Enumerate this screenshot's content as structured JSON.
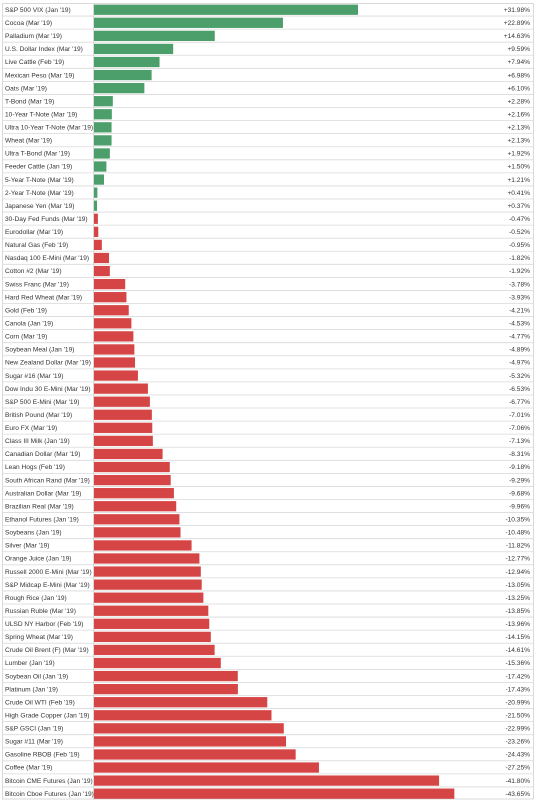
{
  "chart_data": {
    "type": "bar",
    "orientation": "horizontal",
    "title": "",
    "xlabel": "",
    "ylabel": "",
    "xlim": [
      -43.65,
      31.98
    ],
    "grid": true,
    "legend": "none",
    "colors": {
      "positive": "#4c9f6a",
      "negative": "#d64545",
      "row_border": "#d9d9d9",
      "label_text": "#333333"
    },
    "categories": [
      "S&P 500 VIX (Jan '19)",
      "Cocoa (Mar '19)",
      "Palladium (Mar '19)",
      "U.S. Dollar Index (Mar '19)",
      "Live Cattle (Feb '19)",
      "Mexican Peso (Mar '19)",
      "Oats (Mar '19)",
      "T-Bond (Mar '19)",
      "10-Year T-Note (Mar '19)",
      "Ultra 10-Year T-Note (Mar '19)",
      "Wheat (Mar '19)",
      "Ultra T-Bond (Mar '19)",
      "Feeder Cattle (Jan '19)",
      "5-Year T-Note (Mar '19)",
      "2-Year T-Note (Mar '19)",
      "Japanese Yen (Mar '19)",
      "30-Day Fed Funds (Mar '19)",
      "Eurodollar (Mar '19)",
      "Natural Gas (Feb '19)",
      "Nasdaq 100 E-Mini (Mar '19)",
      "Cotton #2 (Mar '19)",
      "Swiss Franc (Mar '19)",
      "Hard Red Wheat (Mar '19)",
      "Gold (Feb '19)",
      "Canola (Jan '19)",
      "Corn (Mar '19)",
      "Soybean Meal (Jan '19)",
      "New Zealand Dollar (Mar '19)",
      "Sugar #16 (Mar '19)",
      "Dow Indu 30 E-Mini (Mar '19)",
      "S&P 500 E-Mini (Mar '19)",
      "British Pound (Mar '19)",
      "Euro FX (Mar '19)",
      "Class III Milk (Jan '19)",
      "Canadian Dollar (Mar '19)",
      "Lean Hogs (Feb '19)",
      "South African Rand (Mar '19)",
      "Australian Dollar (Mar '19)",
      "Brazilian Real (Mar '19)",
      "Ethanol Futures (Jan '19)",
      "Soybeans (Jan '19)",
      "Silver (Mar '19)",
      "Orange Juice (Jan '19)",
      "Russell 2000 E-Mini (Mar '19)",
      "S&P Midcap E-Mini (Mar '19)",
      "Rough Rice (Jan '19)",
      "Russian Ruble (Mar '19)",
      "ULSD NY Harbor (Feb '19)",
      "Spring Wheat (Mar '19)",
      "Crude Oil Brent (F) (Mar '19)",
      "Lumber (Jan '19)",
      "Soybean Oil (Jan '19)",
      "Platinum (Jan '19)",
      "Crude Oil WTI (Feb '19)",
      "High Grade Copper (Jan '19)",
      "S&P GSCI (Jan '19)",
      "Sugar #11 (Mar '19)",
      "Gasoline RBOB (Feb '19)",
      "Coffee (Mar '19)",
      "Bitcoin CME Futures (Jan '19)",
      "Bitcoin Cboe Futures (Jan '19)"
    ],
    "values": [
      31.98,
      22.89,
      14.63,
      9.59,
      7.94,
      6.98,
      6.1,
      2.28,
      2.16,
      2.13,
      2.13,
      1.92,
      1.5,
      1.21,
      0.41,
      0.37,
      -0.47,
      -0.52,
      -0.95,
      -1.82,
      -1.92,
      -3.78,
      -3.93,
      -4.21,
      -4.53,
      -4.77,
      -4.89,
      -4.97,
      -5.32,
      -6.53,
      -6.77,
      -7.01,
      -7.06,
      -7.13,
      -8.31,
      -9.18,
      -9.29,
      -9.68,
      -9.96,
      -10.35,
      -10.48,
      -11.82,
      -12.77,
      -12.94,
      -13.05,
      -13.25,
      -13.85,
      -13.96,
      -14.15,
      -14.61,
      -15.36,
      -17.42,
      -17.43,
      -20.99,
      -21.5,
      -22.99,
      -23.26,
      -24.43,
      -27.25,
      -41.8,
      -43.65
    ],
    "value_labels": [
      "+31.98%",
      "+22.89%",
      "+14.63%",
      "+9.59%",
      "+7.94%",
      "+6.98%",
      "+6.10%",
      "+2.28%",
      "+2.16%",
      "+2.13%",
      "+2.13%",
      "+1.92%",
      "+1.50%",
      "+1.21%",
      "+0.41%",
      "+0.37%",
      "-0.47%",
      "-0.52%",
      "-0.95%",
      "-1.82%",
      "-1.92%",
      "-3.78%",
      "-3.93%",
      "-4.21%",
      "-4.53%",
      "-4.77%",
      "-4.89%",
      "-4.97%",
      "-5.32%",
      "-6.53%",
      "-6.77%",
      "-7.01%",
      "-7.06%",
      "-7.13%",
      "-8.31%",
      "-9.18%",
      "-9.29%",
      "-9.68%",
      "-9.96%",
      "-10.35%",
      "-10.48%",
      "-11.82%",
      "-12.77%",
      "-12.94%",
      "-13.05%",
      "-13.25%",
      "-13.85%",
      "-13.96%",
      "-14.15%",
      "-14.61%",
      "-15.36%",
      "-17.42%",
      "-17.43%",
      "-20.99%",
      "-21.50%",
      "-22.99%",
      "-23.26%",
      "-24.43%",
      "-27.25%",
      "-41.80%",
      "-43.65%"
    ]
  }
}
